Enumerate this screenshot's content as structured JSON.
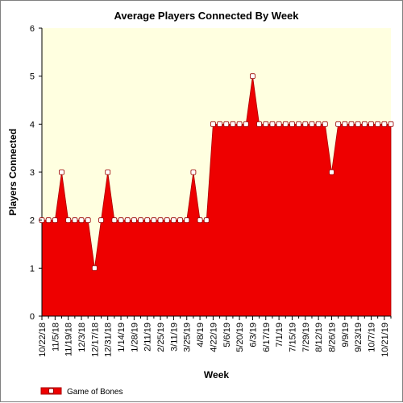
{
  "chart_data": {
    "type": "area",
    "title": "Average Players Connected By Week",
    "xlabel": "Week",
    "ylabel": "Players Connected",
    "ylim": [
      0,
      6
    ],
    "yticks": [
      0,
      1,
      2,
      3,
      4,
      5,
      6
    ],
    "grid": false,
    "legend_position": "bottom-left",
    "x_tick_labels": [
      "10/22/18",
      "11/5/18",
      "11/19/18",
      "12/3/18",
      "12/17/18",
      "12/31/18",
      "1/14/19",
      "1/28/19",
      "2/11/19",
      "2/25/19",
      "3/11/19",
      "3/25/19",
      "4/8/19",
      "4/22/19",
      "5/6/19",
      "5/20/19",
      "6/3/19",
      "6/17/19",
      "7/1/19",
      "7/15/19",
      "7/29/19",
      "8/12/19",
      "8/26/19",
      "9/9/19",
      "9/23/19",
      "10/7/19",
      "10/21/19"
    ],
    "x": [
      "10/22/18",
      "10/29/18",
      "11/5/18",
      "11/12/18",
      "11/19/18",
      "11/26/18",
      "12/3/18",
      "12/10/18",
      "12/17/18",
      "12/24/18",
      "12/31/18",
      "1/7/19",
      "1/14/19",
      "1/21/19",
      "1/28/19",
      "2/4/19",
      "2/11/19",
      "2/18/19",
      "2/25/19",
      "3/4/19",
      "3/11/19",
      "3/18/19",
      "3/25/19",
      "4/1/19",
      "4/8/19",
      "4/15/19",
      "4/22/19",
      "4/29/19",
      "5/6/19",
      "5/13/19",
      "5/20/19",
      "5/27/19",
      "6/3/19",
      "6/10/19",
      "6/17/19",
      "6/24/19",
      "7/1/19",
      "7/8/19",
      "7/15/19",
      "7/22/19",
      "7/29/19",
      "8/5/19",
      "8/12/19",
      "8/19/19",
      "8/26/19",
      "9/2/19",
      "9/9/19",
      "9/16/19",
      "9/23/19",
      "9/30/19",
      "10/7/19",
      "10/14/19",
      "10/21/19",
      "10/28/19"
    ],
    "series": [
      {
        "name": "Game of Bones",
        "color": "#ee0000",
        "values": [
          2,
          2,
          2,
          3,
          2,
          2,
          2,
          2,
          1,
          2,
          3,
          2,
          2,
          2,
          2,
          2,
          2,
          2,
          2,
          2,
          2,
          2,
          2,
          3,
          2,
          2,
          4,
          4,
          4,
          4,
          4,
          4,
          5,
          4,
          4,
          4,
          4,
          4,
          4,
          4,
          4,
          4,
          4,
          4,
          3,
          4,
          4,
          4,
          4,
          4,
          4,
          4,
          4,
          4
        ]
      }
    ],
    "plot_background": "#ffffe0"
  }
}
